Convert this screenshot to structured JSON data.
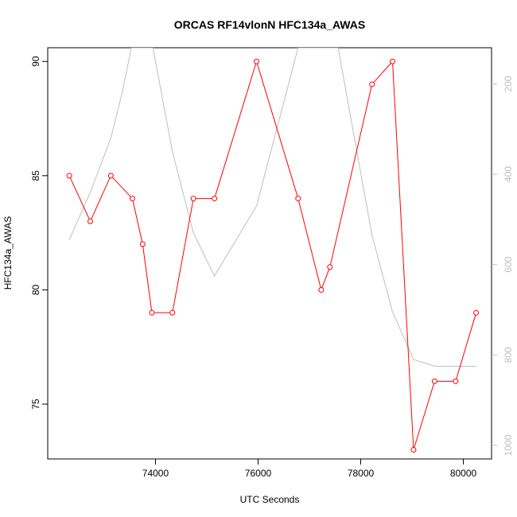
{
  "chart_data": {
    "type": "line",
    "title": "ORCAS RF14vlonN HFC134a_AWAS",
    "xlabel": "UTC Seconds",
    "ylabel": "HFC134a_AWAS",
    "xlim": [
      71900,
      80550
    ],
    "ylim": [
      72.6,
      90.6
    ],
    "y2lim": [
      1030,
      120
    ],
    "y2_inverted": true,
    "x_ticks": [
      74000,
      76000,
      78000,
      80000
    ],
    "y_ticks": [
      75,
      80,
      85,
      90
    ],
    "y2_ticks": [
      200,
      400,
      600,
      800,
      1000
    ],
    "series": [
      {
        "color": "#ff0000",
        "marker": "open-circle",
        "axis": "left",
        "x": [
          72320,
          72730,
          73130,
          73550,
          73750,
          73930,
          74330,
          74740,
          75150,
          75970,
          76780,
          77230,
          77400,
          78220,
          78620,
          79030,
          79440,
          79850,
          80250
        ],
        "y": [
          85,
          83,
          85,
          84,
          82,
          79,
          79,
          84,
          84,
          90,
          84,
          80,
          81,
          89,
          90,
          73,
          76,
          76,
          79
        ]
      },
      {
        "color": "#bebebe",
        "marker": "none",
        "axis": "right",
        "x": [
          72320,
          72730,
          73130,
          73350,
          73530,
          73950,
          74330,
          74740,
          75150,
          75970,
          76780,
          77230,
          77400,
          77560,
          78220,
          78620,
          79030,
          79440,
          79850,
          80250
        ],
        "y": [
          545,
          440,
          320,
          220,
          120,
          120,
          350,
          530,
          625,
          470,
          120,
          120,
          120,
          120,
          535,
          705,
          810,
          825,
          825,
          825
        ]
      }
    ]
  }
}
